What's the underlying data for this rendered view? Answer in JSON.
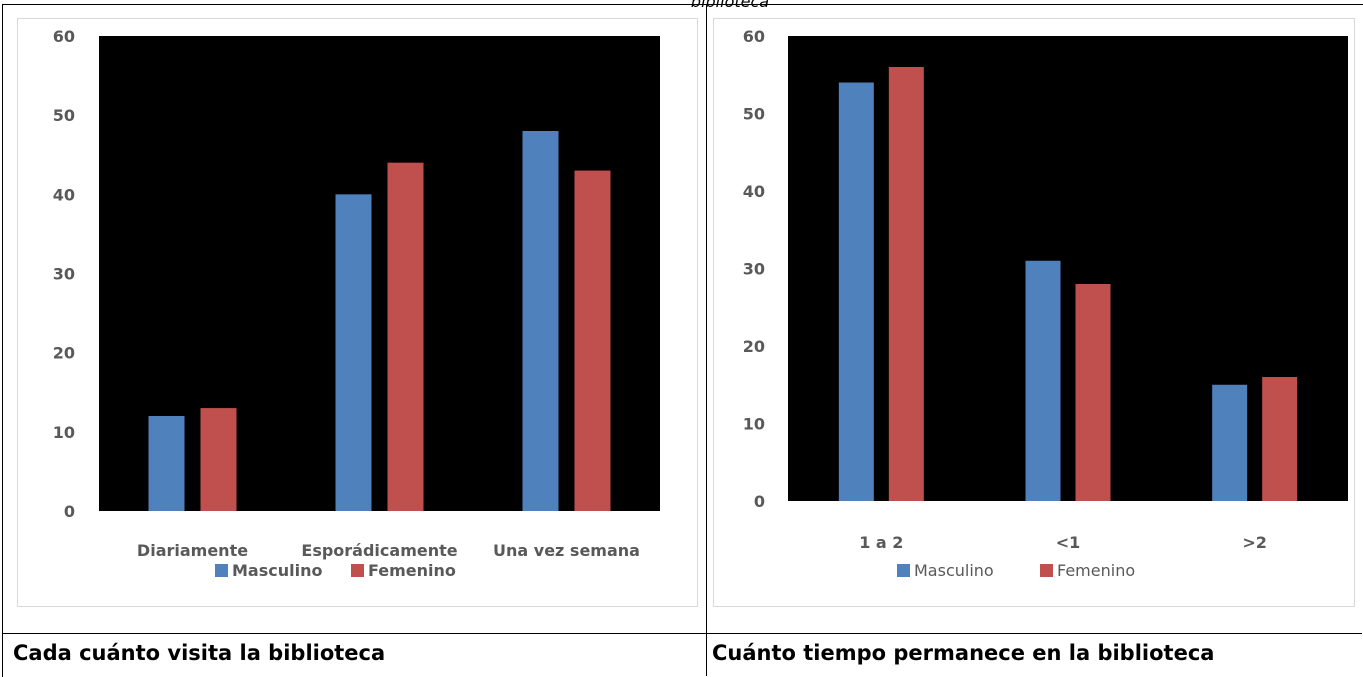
{
  "top_caption": "biblioteca",
  "colors": {
    "masculino": "#4f81bd",
    "femenino": "#c0504d",
    "plot_bg": "#000000",
    "text": "#595959"
  },
  "left_label": "Cada cuánto visita la biblioteca",
  "right_label": "Cuánto tiempo permanece en la biblioteca",
  "chart_data": [
    {
      "type": "bar",
      "categories": [
        "Diariamente",
        "Esporádicamente",
        "Una vez semana"
      ],
      "series": [
        {
          "name": "Masculino",
          "values": [
            12,
            40,
            48
          ]
        },
        {
          "name": "Femenino",
          "values": [
            13,
            44,
            43
          ]
        }
      ],
      "ylim": [
        0,
        60
      ],
      "yticks": [
        0,
        10,
        20,
        30,
        40,
        50,
        60
      ],
      "grid": false,
      "legend_position": "bottom",
      "title": "",
      "xlabel": "",
      "ylabel": ""
    },
    {
      "type": "bar",
      "categories": [
        "1 a 2",
        "<1",
        ">2"
      ],
      "series": [
        {
          "name": "Masculino",
          "values": [
            54,
            31,
            15
          ]
        },
        {
          "name": "Femenino",
          "values": [
            56,
            28,
            16
          ]
        }
      ],
      "ylim": [
        0,
        60
      ],
      "yticks": [
        0,
        10,
        20,
        30,
        40,
        50,
        60
      ],
      "grid": false,
      "legend_position": "bottom",
      "title": "",
      "xlabel": "",
      "ylabel": ""
    }
  ]
}
